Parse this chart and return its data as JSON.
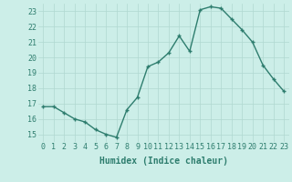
{
  "x": [
    0,
    1,
    2,
    3,
    4,
    5,
    6,
    7,
    8,
    9,
    10,
    11,
    12,
    13,
    14,
    15,
    16,
    17,
    18,
    19,
    20,
    21,
    22,
    23
  ],
  "y": [
    16.8,
    16.8,
    16.4,
    16.0,
    15.8,
    15.3,
    15.0,
    14.8,
    16.6,
    17.4,
    19.4,
    19.7,
    20.3,
    21.4,
    20.4,
    23.1,
    23.3,
    23.2,
    22.5,
    21.8,
    21.0,
    19.5,
    18.6,
    17.8
  ],
  "line_color": "#2e7d6e",
  "marker": "+",
  "marker_size": 3.5,
  "marker_lw": 1.0,
  "bg_color": "#cceee8",
  "grid_color": "#b0d8d0",
  "xlabel": "Humidex (Indice chaleur)",
  "ylim": [
    14.5,
    23.5
  ],
  "xlim": [
    -0.5,
    23.5
  ],
  "yticks": [
    15,
    16,
    17,
    18,
    19,
    20,
    21,
    22,
    23
  ],
  "xticks": [
    0,
    1,
    2,
    3,
    4,
    5,
    6,
    7,
    8,
    9,
    10,
    11,
    12,
    13,
    14,
    15,
    16,
    17,
    18,
    19,
    20,
    21,
    22,
    23
  ],
  "tick_label_color": "#2e7d6e",
  "label_fontsize": 7.0,
  "tick_fontsize": 6.0,
  "linewidth": 1.0
}
